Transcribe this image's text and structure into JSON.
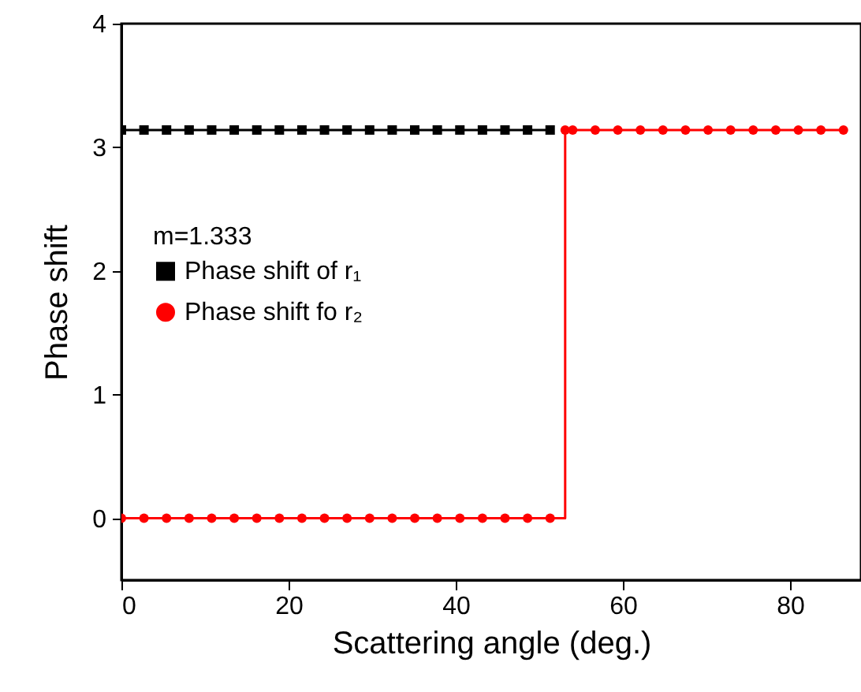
{
  "chart_data": {
    "type": "line",
    "xlabel": "Scattering angle (deg.)",
    "ylabel": "Phase shift",
    "legend_title": "m=1.333",
    "legend": "left",
    "grid": false,
    "xlim": [
      0,
      88.5
    ],
    "xticks": [
      0,
      20,
      40,
      60,
      80
    ],
    "ylim": [
      -0.5,
      4
    ],
    "yticks": [
      0,
      1,
      2,
      3,
      4
    ],
    "series": [
      {
        "name": "Phase shift of r₁",
        "color": "#000000",
        "marker": "square",
        "x": [
          0,
          2.7,
          5.4,
          8.1,
          10.8,
          13.5,
          16.2,
          18.9,
          21.6,
          24.3,
          27,
          29.7,
          32.4,
          35.1,
          37.8,
          40.5,
          43.2,
          45.9,
          48.6,
          51.3
        ],
        "values": [
          3.14,
          3.14,
          3.14,
          3.14,
          3.14,
          3.14,
          3.14,
          3.14,
          3.14,
          3.14,
          3.14,
          3.14,
          3.14,
          3.14,
          3.14,
          3.14,
          3.14,
          3.14,
          3.14,
          3.14
        ]
      },
      {
        "name": "Phase shift fo r₂",
        "color": "#ff0000",
        "marker": "circle",
        "type": "step",
        "x": [
          0,
          2.7,
          5.4,
          8.1,
          10.8,
          13.5,
          16.2,
          18.9,
          21.6,
          24.3,
          27,
          29.7,
          32.4,
          35.1,
          37.8,
          40.5,
          43.2,
          45.9,
          48.6,
          51.3,
          53.1,
          54,
          56.7,
          59.4,
          62.1,
          64.8,
          67.5,
          70.2,
          72.9,
          75.6,
          78.3,
          81,
          83.7,
          86.4
        ],
        "values": [
          0,
          0,
          0,
          0,
          0,
          0,
          0,
          0,
          0,
          0,
          0,
          0,
          0,
          0,
          0,
          0,
          0,
          0,
          0,
          0,
          3.14,
          3.14,
          3.14,
          3.14,
          3.14,
          3.14,
          3.14,
          3.14,
          3.14,
          3.14,
          3.14,
          3.14,
          3.14,
          3.14
        ]
      }
    ]
  }
}
